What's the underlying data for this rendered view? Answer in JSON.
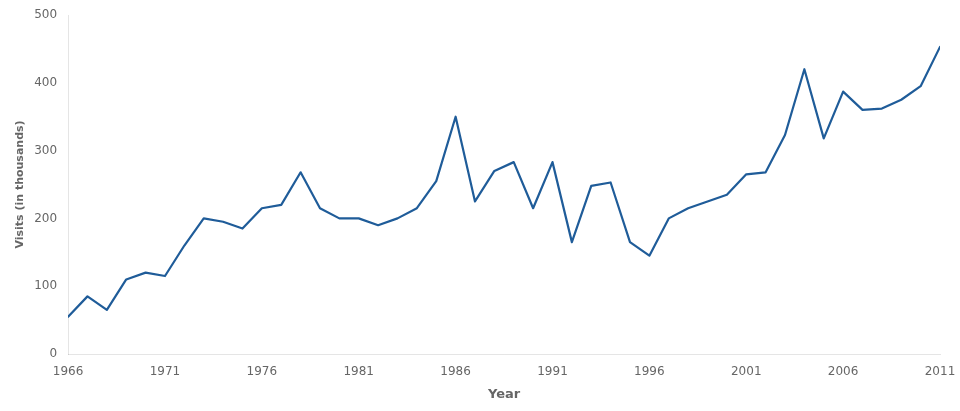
{
  "chart_data": {
    "type": "line",
    "x": [
      1966,
      1967,
      1968,
      1969,
      1970,
      1971,
      1972,
      1973,
      1974,
      1975,
      1976,
      1977,
      1978,
      1979,
      1980,
      1981,
      1982,
      1983,
      1984,
      1985,
      1986,
      1987,
      1988,
      1989,
      1990,
      1991,
      1992,
      1993,
      1994,
      1995,
      1996,
      1997,
      1998,
      1999,
      2000,
      2001,
      2002,
      2003,
      2004,
      2005,
      2006,
      2007,
      2008,
      2009,
      2010,
      2011
    ],
    "values": [
      55,
      85,
      65,
      110,
      120,
      115,
      160,
      200,
      195,
      185,
      215,
      220,
      268,
      215,
      200,
      200,
      190,
      200,
      215,
      255,
      350,
      225,
      270,
      283,
      215,
      283,
      165,
      248,
      253,
      165,
      145,
      200,
      215,
      225,
      235,
      265,
      268,
      323,
      420,
      318,
      387,
      360,
      362,
      375,
      395,
      453
    ],
    "color": "#1f5c99",
    "xlabel": "Year",
    "ylabel": "Visits (in thousands)",
    "xlim": [
      1966,
      2011
    ],
    "xticks": [
      1966,
      1971,
      1976,
      1981,
      1986,
      1991,
      1996,
      2001,
      2006,
      2011
    ],
    "ylim": [
      0,
      500
    ],
    "yticks": [
      0,
      100,
      200,
      300,
      400,
      500
    ],
    "grid": false
  }
}
